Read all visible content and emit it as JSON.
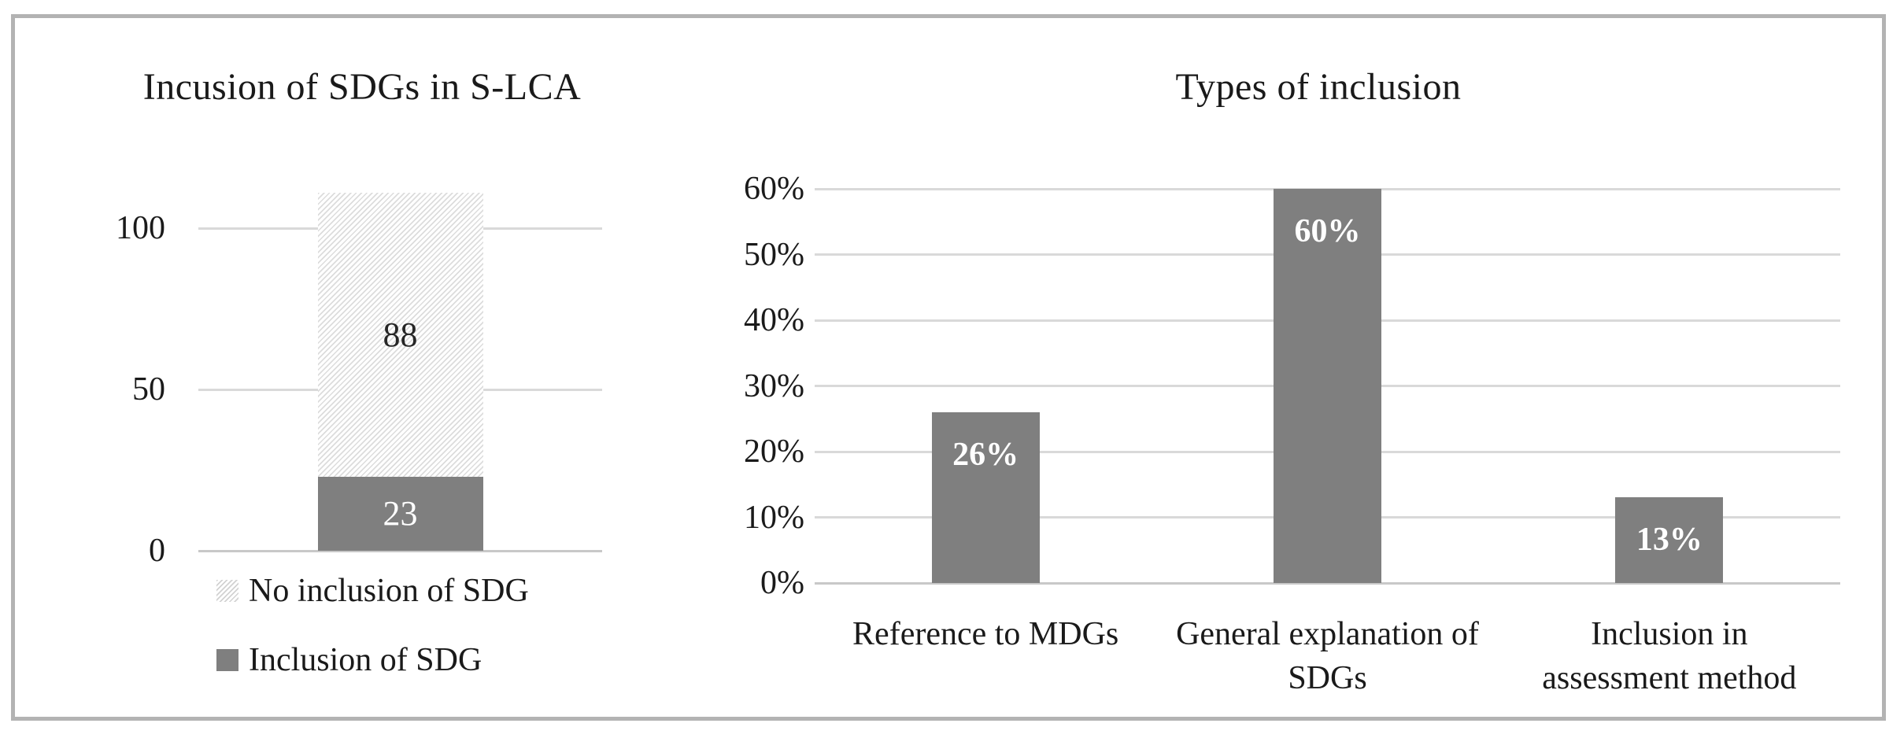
{
  "figure": {
    "background": "#ffffff",
    "border_color": "#b3b3b3"
  },
  "colors": {
    "bar_fill": "#7f7f7f",
    "hatch_line": "#d9d9d9",
    "gridline": "#d9d9d9",
    "axis_line": "#c8c8c8",
    "text": "#1a1a1a",
    "bar_label_light": "#ffffff",
    "bar_label_dark": "#262626"
  },
  "chart_data": [
    {
      "type": "bar",
      "subtype": "stacked",
      "title": "Incusion of SDGs in S-LCA",
      "ylim": [
        0,
        111
      ],
      "grid": true,
      "y_ticks": [
        {
          "value": 100,
          "label": "100"
        },
        {
          "value": 50,
          "label": "50"
        },
        {
          "value": 0,
          "label": "0"
        }
      ],
      "categories": [
        ""
      ],
      "series": [
        {
          "name": "Inclusion of SDG",
          "value": 23,
          "data_label": "23",
          "fill": "solid",
          "color": "#7f7f7f",
          "label_color": "#ffffff"
        },
        {
          "name": "No inclusion of SDG",
          "value": 88,
          "data_label": "88",
          "fill": "hatch",
          "label_color": "#262626"
        }
      ],
      "legend_position": "bottom-left",
      "legend": [
        {
          "label": "No inclusion of SDG",
          "swatch": "hatch"
        },
        {
          "label": "Inclusion of SDG",
          "swatch": "solid"
        }
      ]
    },
    {
      "type": "bar",
      "title": "Types of inclusion",
      "ylim": [
        0,
        60
      ],
      "grid": true,
      "bar_color": "#7f7f7f",
      "label_color": "#ffffff",
      "y_ticks": [
        {
          "value": 60,
          "label": "60%"
        },
        {
          "value": 50,
          "label": "50%"
        },
        {
          "value": 40,
          "label": "40%"
        },
        {
          "value": 30,
          "label": "30%"
        },
        {
          "value": 20,
          "label": "20%"
        },
        {
          "value": 10,
          "label": "10%"
        },
        {
          "value": 0,
          "label": "0%"
        }
      ],
      "bars": [
        {
          "category": "Reference to MDGs",
          "category_lines": [
            "Reference to MDGs"
          ],
          "value": 26,
          "data_label": "26%"
        },
        {
          "category": "General explanation of SDGs",
          "category_lines": [
            "General explanation of",
            "SDGs"
          ],
          "value": 60,
          "data_label": "60%"
        },
        {
          "category": "Inclusion in assessment method",
          "category_lines": [
            "Inclusion in",
            "assessment method"
          ],
          "value": 13,
          "data_label": "13%"
        }
      ]
    }
  ]
}
